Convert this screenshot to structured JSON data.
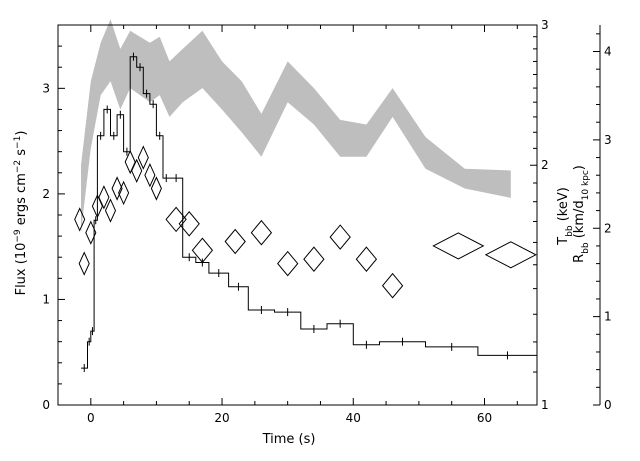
{
  "chart_data": {
    "type": "line",
    "title": "",
    "xlabel": "Time (s)",
    "xlim": [
      -5,
      68
    ],
    "x_ticks": [
      0,
      20,
      40,
      60
    ],
    "axes": {
      "flux": {
        "label": "Flux (10^-9 ergs cm^-2 s^-1)",
        "label_parts": [
          "Flux (10",
          "−9",
          " ergs cm",
          "−2",
          " s",
          "−1",
          ")"
        ],
        "ylim": [
          0,
          3.6
        ],
        "ticks": [
          0,
          1,
          2,
          3
        ]
      },
      "kT": {
        "label": "T_bb (keV)",
        "label_main": "T",
        "label_sub": "bb",
        "label_rest": " (keV)",
        "scale": "log",
        "ylim": [
          1,
          3
        ],
        "ticks": [
          1,
          2,
          3
        ]
      },
      "radius": {
        "label": "R_bb (km/d_10 kpc)",
        "label_main": "R",
        "label_sub": "bb",
        "label_mid": " (km/d",
        "label_sub2": "10 kpc",
        "label_end": ")",
        "ylim": [
          0,
          4.3
        ],
        "ticks": [
          0,
          1,
          2,
          3,
          4
        ]
      }
    },
    "series": [
      {
        "style": "step-histogram",
        "axis": "flux",
        "bins": [
          [
            -1.5,
            -0.5,
            0.35
          ],
          [
            -0.5,
            0.0,
            0.6
          ],
          [
            0.0,
            0.5,
            0.7
          ],
          [
            0.5,
            1.0,
            1.75
          ],
          [
            1.0,
            2.0,
            2.55
          ],
          [
            2.0,
            3.0,
            2.8
          ],
          [
            3.0,
            4.0,
            2.55
          ],
          [
            4.0,
            5.0,
            2.75
          ],
          [
            5.0,
            6.0,
            2.4
          ],
          [
            6.0,
            7.0,
            3.3
          ],
          [
            7.0,
            8.0,
            3.2
          ],
          [
            8.0,
            9.0,
            2.95
          ],
          [
            9.0,
            10.0,
            2.85
          ],
          [
            10.0,
            11.0,
            2.55
          ],
          [
            11.0,
            12.0,
            2.15
          ],
          [
            12.0,
            14.0,
            2.15
          ],
          [
            14.0,
            16.0,
            1.4
          ],
          [
            16.0,
            18.0,
            1.35
          ],
          [
            18.0,
            21.0,
            1.25
          ],
          [
            21.0,
            24.0,
            1.12
          ],
          [
            24.0,
            28.0,
            0.9
          ],
          [
            28.0,
            32.0,
            0.88
          ],
          [
            32.0,
            36.0,
            0.72
          ],
          [
            36.0,
            40.0,
            0.77
          ],
          [
            40.0,
            44.0,
            0.57
          ],
          [
            44.0,
            51.0,
            0.6
          ],
          [
            51.0,
            59.0,
            0.55
          ],
          [
            59.0,
            68.0,
            0.47
          ]
        ]
      },
      {
        "style": "band",
        "axis": "kT",
        "points": [
          [
            -1.5,
            1.65,
            2.0
          ],
          [
            0.0,
            2.1,
            2.55
          ],
          [
            1.5,
            2.45,
            2.85
          ],
          [
            3.0,
            2.55,
            3.05
          ],
          [
            4.5,
            2.35,
            2.8
          ],
          [
            6.0,
            2.5,
            2.95
          ],
          [
            7.5,
            2.45,
            2.9
          ],
          [
            9.0,
            2.4,
            2.85
          ],
          [
            10.5,
            2.45,
            2.9
          ],
          [
            12.0,
            2.3,
            2.7
          ],
          [
            14.0,
            2.4,
            2.8
          ],
          [
            17.0,
            2.5,
            2.95
          ],
          [
            20.0,
            2.35,
            2.7
          ],
          [
            23.0,
            2.2,
            2.55
          ],
          [
            26.0,
            2.05,
            2.32
          ],
          [
            30.0,
            2.4,
            2.7
          ],
          [
            34.0,
            2.25,
            2.5
          ],
          [
            38.0,
            2.05,
            2.28
          ],
          [
            42.0,
            2.05,
            2.25
          ],
          [
            46.0,
            2.3,
            2.5
          ],
          [
            51.0,
            1.98,
            2.17
          ],
          [
            57.0,
            1.87,
            1.98
          ],
          [
            64.0,
            1.82,
            1.97
          ]
        ]
      },
      {
        "style": "diamonds",
        "axis": "radius",
        "points": [
          [
            -1.7,
            2.1
          ],
          [
            -1.0,
            1.6
          ],
          [
            0.0,
            1.95
          ],
          [
            1.0,
            2.25
          ],
          [
            2.0,
            2.35
          ],
          [
            3.0,
            2.2
          ],
          [
            4.0,
            2.45
          ],
          [
            5.0,
            2.4
          ],
          [
            6.0,
            2.75
          ],
          [
            7.0,
            2.65
          ],
          [
            8.0,
            2.8
          ],
          [
            9.0,
            2.6
          ],
          [
            10.0,
            2.45
          ],
          [
            13.0,
            2.1
          ],
          [
            15.0,
            2.05
          ],
          [
            17.0,
            1.75
          ],
          [
            22.0,
            1.85
          ],
          [
            26.0,
            1.95
          ],
          [
            30.0,
            1.6
          ],
          [
            34.0,
            1.65
          ],
          [
            38.0,
            1.9
          ],
          [
            42.0,
            1.65
          ],
          [
            46.0,
            1.35
          ],
          [
            56.0,
            1.8
          ],
          [
            64.0,
            1.7
          ]
        ]
      }
    ],
    "grid": false,
    "legend": "none"
  }
}
